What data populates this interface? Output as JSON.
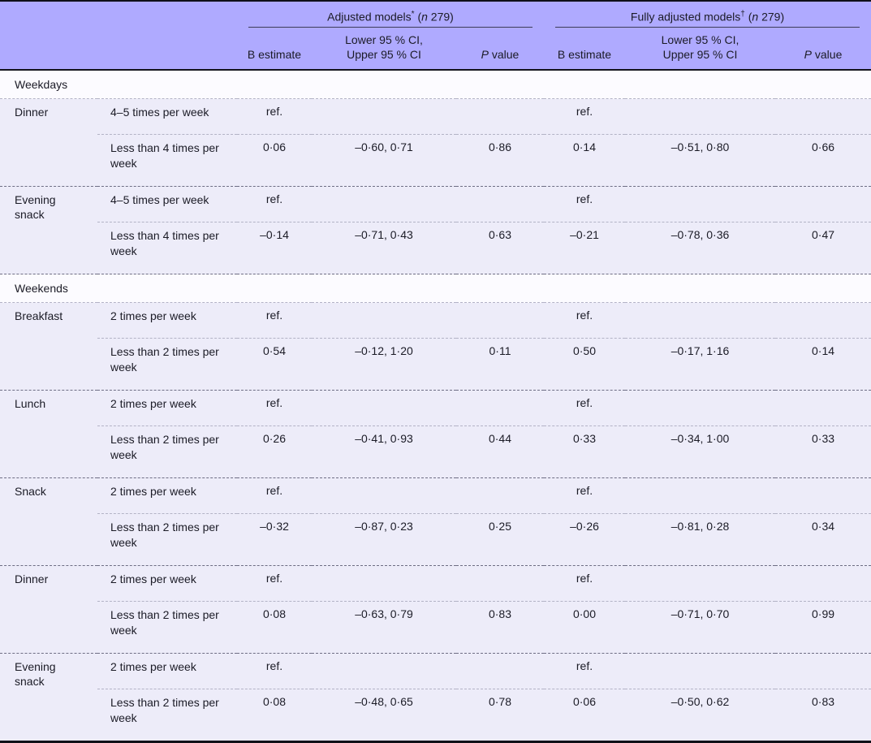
{
  "header": {
    "group1": {
      "name": "Adjusted models",
      "marker": "*",
      "n_prefix": "(",
      "n_italic": "n",
      "n_suffix": " 279)"
    },
    "group2": {
      "name": "Fully adjusted models",
      "marker": "†",
      "n_prefix": "(",
      "n_italic": "n",
      "n_suffix": " 279)"
    },
    "sub": {
      "b_estimate": "B estimate",
      "ci_line1": "Lower 95 % CI,",
      "ci_line2": "Upper 95 % CI",
      "p_italic": "P",
      "p_rest": " value"
    }
  },
  "rows": [
    {
      "label": "Weekdays"
    },
    {
      "meal": "Dinner",
      "freq": "4–5 times per week",
      "ab": "ref.",
      "aci": "",
      "ap": "",
      "fb": "ref.",
      "fci": "",
      "fp": ""
    },
    {
      "freq": "Less than 4 times per week",
      "ab": "0·06",
      "aci": "–0·60, 0·71",
      "ap": "0·86",
      "fb": "0·14",
      "fci": "–0·51, 0·80",
      "fp": "0·66"
    },
    {
      "meal": "Evening snack",
      "freq": "4–5 times per week",
      "ab": "ref.",
      "aci": "",
      "ap": "",
      "fb": "ref.",
      "fci": "",
      "fp": ""
    },
    {
      "freq": "Less than 4 times per week",
      "ab": "–0·14",
      "aci": "–0·71, 0·43",
      "ap": "0·63",
      "fb": "–0·21",
      "fci": "–0·78, 0·36",
      "fp": "0·47"
    },
    {
      "label": "Weekends"
    },
    {
      "meal": "Breakfast",
      "freq": "2 times per week",
      "ab": "ref.",
      "aci": "",
      "ap": "",
      "fb": "ref.",
      "fci": "",
      "fp": ""
    },
    {
      "freq": "Less than 2 times per week",
      "ab": "0·54",
      "aci": "–0·12, 1·20",
      "ap": "0·11",
      "fb": "0·50",
      "fci": "–0·17, 1·16",
      "fp": "0·14"
    },
    {
      "meal": "Lunch",
      "freq": "2 times per week",
      "ab": "ref.",
      "aci": "",
      "ap": "",
      "fb": "ref.",
      "fci": "",
      "fp": ""
    },
    {
      "freq": "Less than 2 times per week",
      "ab": "0·26",
      "aci": "–0·41, 0·93",
      "ap": "0·44",
      "fb": "0·33",
      "fci": "–0·34, 1·00",
      "fp": "0·33"
    },
    {
      "meal": "Snack",
      "freq": "2 times per week",
      "ab": "ref.",
      "aci": "",
      "ap": "",
      "fb": "ref.",
      "fci": "",
      "fp": ""
    },
    {
      "freq": "Less than 2 times per week",
      "ab": "–0·32",
      "aci": "–0·87, 0·23",
      "ap": "0·25",
      "fb": "–0·26",
      "fci": "–0·81, 0·28",
      "fp": "0·34"
    },
    {
      "meal": "Dinner",
      "freq": "2 times per week",
      "ab": "ref.",
      "aci": "",
      "ap": "",
      "fb": "ref.",
      "fci": "",
      "fp": ""
    },
    {
      "freq": "Less than 2 times per week",
      "ab": "0·08",
      "aci": "–0·63, 0·79",
      "ap": "0·83",
      "fb": "0·00",
      "fci": "–0·71, 0·70",
      "fp": "0·99"
    },
    {
      "meal": "Evening snack",
      "freq": "2 times per week",
      "ab": "ref.",
      "aci": "",
      "ap": "",
      "fb": "ref.",
      "fci": "",
      "fp": ""
    },
    {
      "freq": "Less than 2 times per week",
      "ab": "0·08",
      "aci": "–0·48, 0·65",
      "ap": "0·78",
      "fb": "0·06",
      "fci": "–0·50, 0·62",
      "fp": "0·83"
    }
  ],
  "colors": {
    "header_band": "#afaaff",
    "row_bg": "#edecf9",
    "section_bg": "#fcfbff",
    "rule_dark": "#101018"
  }
}
